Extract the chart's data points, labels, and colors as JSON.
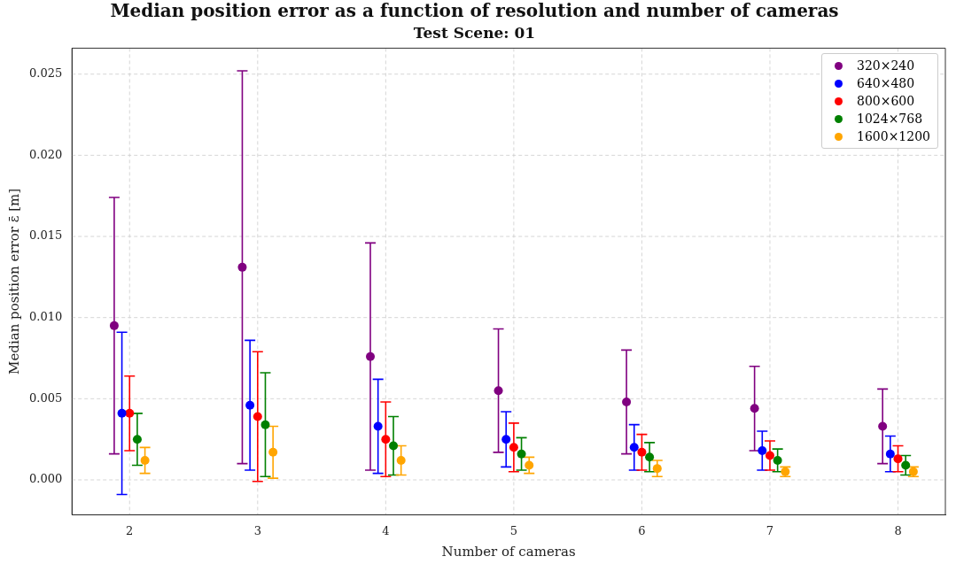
{
  "chart_data": {
    "type": "scatter",
    "title": "Median position error as a function of resolution and number of cameras",
    "subtitle": "Test Scene: 01",
    "xlabel": "Number of cameras",
    "ylabel": "Median position error ε̄ [m]",
    "xlim": [
      1.55,
      8.37
    ],
    "xticks": [
      2,
      3,
      4,
      5,
      6,
      7,
      8
    ],
    "ylim": [
      -0.00215,
      0.0266
    ],
    "yticks": [
      {
        "value": 0,
        "label": "0.000"
      },
      {
        "value": 0.005,
        "label": "0.005"
      },
      {
        "value": 0.01,
        "label": "0.010"
      },
      {
        "value": 0.015,
        "label": "0.015"
      },
      {
        "value": 0.02,
        "label": "0.020"
      },
      {
        "value": 0.025,
        "label": "0.025"
      }
    ],
    "grid": true,
    "legend": "top right",
    "marker": "circle",
    "series": [
      {
        "name": "320×240",
        "color": "#800080",
        "x": [
          1.88,
          2.88,
          3.88,
          4.88,
          5.88,
          6.88,
          7.88
        ],
        "values": [
          0.0095,
          0.0131,
          0.0076,
          0.0055,
          0.0048,
          0.0044,
          0.0033
        ],
        "errors": [
          [
            0.0016,
            0.0174
          ],
          [
            0.001,
            0.0252
          ],
          [
            0.0006,
            0.0146
          ],
          [
            0.0017,
            0.0093
          ],
          [
            0.0016,
            0.008
          ],
          [
            0.0018,
            0.007
          ],
          [
            0.001,
            0.0056
          ]
        ]
      },
      {
        "name": "640×480",
        "color": "#0000ff",
        "x": [
          1.94,
          2.94,
          3.94,
          4.94,
          5.94,
          6.94,
          7.94
        ],
        "values": [
          0.0041,
          0.0046,
          0.0033,
          0.0025,
          0.002,
          0.0018,
          0.0016
        ],
        "errors": [
          [
            -0.0009,
            0.0091
          ],
          [
            0.0006,
            0.0086
          ],
          [
            0.0004,
            0.0062
          ],
          [
            0.0008,
            0.0042
          ],
          [
            0.0006,
            0.0034
          ],
          [
            0.0006,
            0.003
          ],
          [
            0.0005,
            0.0027
          ]
        ]
      },
      {
        "name": "800×600",
        "color": "#ff0000",
        "x": [
          2,
          3,
          4,
          5,
          6,
          7,
          8
        ],
        "values": [
          0.0041,
          0.0039,
          0.0025,
          0.002,
          0.0017,
          0.0015,
          0.0013
        ],
        "errors": [
          [
            0.0018,
            0.0064
          ],
          [
            -0.0001,
            0.0079
          ],
          [
            0.0002,
            0.0048
          ],
          [
            0.0005,
            0.0035
          ],
          [
            0.0006,
            0.0028
          ],
          [
            0.0006,
            0.0024
          ],
          [
            0.0005,
            0.0021
          ]
        ]
      },
      {
        "name": "1024×768",
        "color": "#008000",
        "x": [
          2.06,
          3.06,
          4.06,
          5.06,
          6.06,
          7.06,
          8.06
        ],
        "values": [
          0.0025,
          0.0034,
          0.0021,
          0.0016,
          0.0014,
          0.0012,
          0.0009
        ],
        "errors": [
          [
            0.0009,
            0.0041
          ],
          [
            0.0002,
            0.0066
          ],
          [
            0.0003,
            0.0039
          ],
          [
            0.0006,
            0.0026
          ],
          [
            0.0005,
            0.0023
          ],
          [
            0.0005,
            0.0019
          ],
          [
            0.0003,
            0.0015
          ]
        ]
      },
      {
        "name": "1600×1200",
        "color": "#ffa500",
        "x": [
          2.12,
          3.12,
          4.12,
          5.12,
          6.12,
          7.12,
          8.12
        ],
        "values": [
          0.0012,
          0.0017,
          0.0012,
          0.0009,
          0.0007,
          0.0005,
          0.0005
        ],
        "errors": [
          [
            0.0004,
            0.002
          ],
          [
            0.0001,
            0.0033
          ],
          [
            0.0003,
            0.0021
          ],
          [
            0.0004,
            0.0014
          ],
          [
            0.0002,
            0.0012
          ],
          [
            0.0002,
            0.0008
          ],
          [
            0.0002,
            0.0008
          ]
        ]
      }
    ]
  }
}
